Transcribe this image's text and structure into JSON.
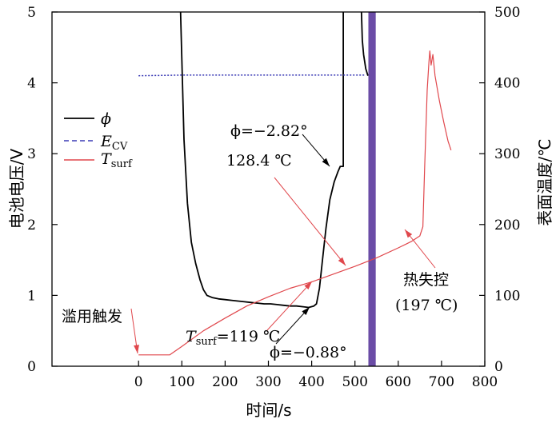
{
  "chart_data": {
    "type": "line",
    "xlabel": "时间/s",
    "ylabel_left": "电池电压/V",
    "ylabel_right": "表面温度/℃",
    "xlim": [
      -200,
      800
    ],
    "ylim_left": [
      0,
      5
    ],
    "ylim_right": [
      0,
      500
    ],
    "x_ticks": [
      0,
      100,
      200,
      300,
      400,
      500,
      600,
      700,
      800
    ],
    "y_left_ticks": [
      0,
      1,
      2,
      3,
      4,
      5
    ],
    "y_right_ticks": [
      0,
      100,
      200,
      300,
      400,
      500
    ],
    "legend": {
      "position": "upper-left",
      "entries": [
        {
          "symbol": "ϕ",
          "sub": "",
          "color": "#000000",
          "dash": "solid"
        },
        {
          "symbol": "E",
          "sub": "CV",
          "color": "#3b3bb5",
          "dash": "dashed"
        },
        {
          "symbol": "T",
          "sub": "surf",
          "color": "#e0474c",
          "dash": "solid"
        }
      ]
    },
    "series": [
      {
        "symbol": "phi",
        "axis": "left",
        "color": "#000000",
        "points": [
          [
            97,
            5.0
          ],
          [
            105,
            3.2
          ],
          [
            113,
            2.3
          ],
          [
            122,
            1.75
          ],
          [
            132,
            1.45
          ],
          [
            142,
            1.22
          ],
          [
            150,
            1.08
          ],
          [
            158,
            1.0
          ],
          [
            170,
            0.97
          ],
          [
            185,
            0.95
          ],
          [
            200,
            0.94
          ],
          [
            215,
            0.93
          ],
          [
            230,
            0.92
          ],
          [
            245,
            0.91
          ],
          [
            260,
            0.9
          ],
          [
            275,
            0.89
          ],
          [
            290,
            0.88
          ],
          [
            305,
            0.88
          ],
          [
            320,
            0.87
          ],
          [
            335,
            0.86
          ],
          [
            350,
            0.85
          ],
          [
            365,
            0.85
          ],
          [
            380,
            0.84
          ],
          [
            393,
            0.83
          ],
          [
            405,
            0.85
          ],
          [
            411,
            0.88
          ],
          [
            418,
            1.1
          ],
          [
            425,
            1.5
          ],
          [
            433,
            1.95
          ],
          [
            442,
            2.35
          ],
          [
            452,
            2.6
          ],
          [
            461,
            2.75
          ],
          [
            466,
            2.82
          ],
          [
            473,
            2.82
          ],
          [
            473,
            5.0
          ]
        ]
      },
      {
        "symbol": "phi_late",
        "axis": "left",
        "color": "#000000",
        "points": [
          [
            515,
            5.0
          ],
          [
            517,
            4.6
          ],
          [
            520,
            4.4
          ],
          [
            525,
            4.2
          ],
          [
            530,
            4.1
          ]
        ]
      },
      {
        "symbol": "E_CV",
        "axis": "left",
        "color": "#3b3bb5",
        "points": [
          [
            0,
            4.1
          ],
          [
            100,
            4.11
          ],
          [
            200,
            4.11
          ],
          [
            300,
            4.11
          ],
          [
            400,
            4.11
          ],
          [
            525,
            4.11
          ]
        ]
      },
      {
        "symbol": "T_surf",
        "axis": "right",
        "color": "#e0474c",
        "points": [
          [
            0,
            16
          ],
          [
            40,
            16
          ],
          [
            72,
            16
          ],
          [
            100,
            28
          ],
          [
            150,
            50
          ],
          [
            200,
            68
          ],
          [
            250,
            85
          ],
          [
            300,
            98
          ],
          [
            350,
            110
          ],
          [
            400,
            119
          ],
          [
            450,
            130
          ],
          [
            500,
            141
          ],
          [
            550,
            153
          ],
          [
            600,
            167
          ],
          [
            630,
            176
          ],
          [
            650,
            184
          ],
          [
            657,
            197
          ],
          [
            661,
            280
          ],
          [
            667,
            390
          ],
          [
            671,
            430
          ],
          [
            673,
            445
          ],
          [
            676,
            425
          ],
          [
            680,
            440
          ],
          [
            685,
            410
          ],
          [
            695,
            375
          ],
          [
            705,
            345
          ],
          [
            715,
            318
          ],
          [
            722,
            305
          ]
        ]
      }
    ],
    "band": {
      "x_start": 531,
      "x_end": 548,
      "color": "#6b4ca6"
    },
    "annotations": [
      {
        "text": "ϕ=−2.82°"
      },
      {
        "text": "128.4 ℃"
      },
      {
        "text": "热失控"
      },
      {
        "text": "(197 ℃)"
      },
      {
        "text": "滥用触发"
      },
      {
        "text": "T",
        "sub": "surf",
        "suffix": "=119 ℃"
      },
      {
        "text": "ϕ=−0.88°"
      }
    ]
  }
}
